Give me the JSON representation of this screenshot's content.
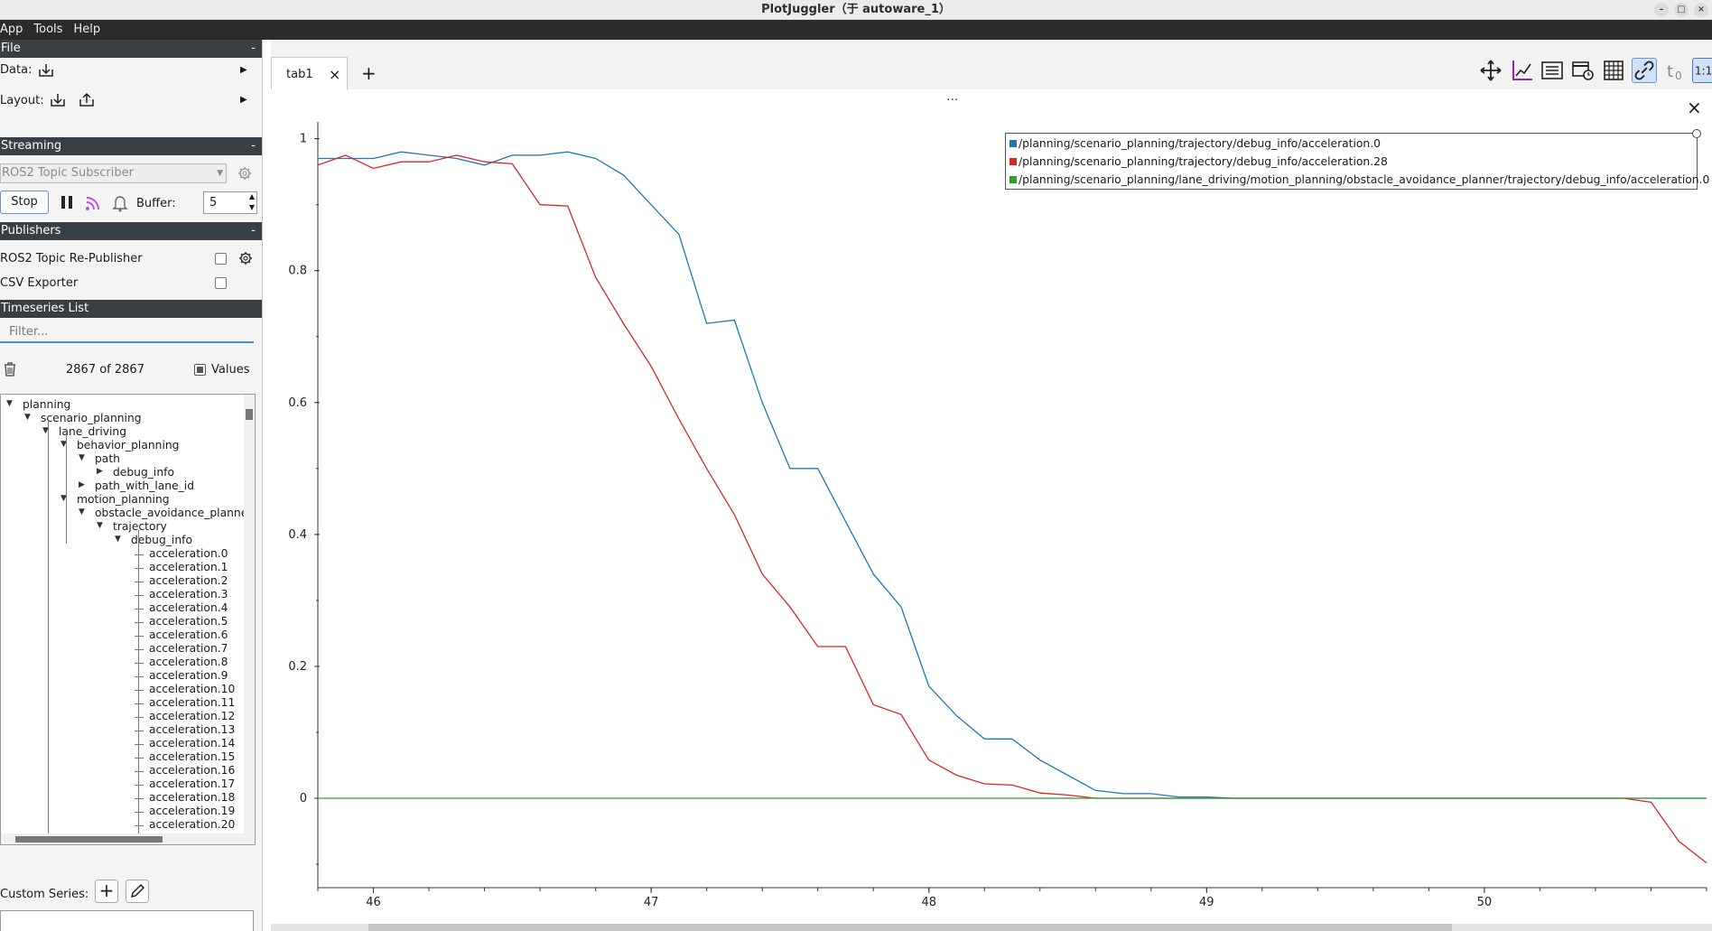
{
  "window": {
    "title": "PlotJuggler（于 autoware_1）",
    "controls": [
      "–",
      "□",
      "×"
    ]
  },
  "menu": [
    "App",
    "Tools",
    "Help"
  ],
  "file_section": {
    "header": "File",
    "collapse": "-",
    "data_label": "Data:",
    "layout_label": "Layout:"
  },
  "streaming": {
    "header": "Streaming",
    "collapse": "-",
    "source": "ROS2 Topic Subscriber",
    "stop_label": "Stop",
    "buffer_label": "Buffer:",
    "buffer_value": "5"
  },
  "publishers": {
    "header": "Publishers",
    "collapse": "-",
    "items": [
      {
        "label": "ROS2 Topic Re-Publisher",
        "checked": false
      },
      {
        "label": "CSV Exporter",
        "checked": false
      }
    ]
  },
  "timeseries": {
    "header": "Timeseries List",
    "filter_placeholder": "Filter...",
    "count": "2867 of 2867",
    "values_label": "Values",
    "tree": [
      {
        "label": "planning",
        "depth": 0,
        "arrow": "down"
      },
      {
        "label": "scenario_planning",
        "depth": 1,
        "arrow": "down"
      },
      {
        "label": "lane_driving",
        "depth": 2,
        "arrow": "down"
      },
      {
        "label": "behavior_planning",
        "depth": 3,
        "arrow": "down"
      },
      {
        "label": "path",
        "depth": 4,
        "arrow": "down"
      },
      {
        "label": "debug_info",
        "depth": 5,
        "arrow": "right"
      },
      {
        "label": "path_with_lane_id",
        "depth": 4,
        "arrow": "right"
      },
      {
        "label": "motion_planning",
        "depth": 3,
        "arrow": "down"
      },
      {
        "label": "obstacle_avoidance_planne",
        "depth": 4,
        "arrow": "down"
      },
      {
        "label": "trajectory",
        "depth": 5,
        "arrow": "down"
      },
      {
        "label": "debug_info",
        "depth": 6,
        "arrow": "down"
      },
      {
        "label": "acceleration.0",
        "depth": 7,
        "arrow": ""
      },
      {
        "label": "acceleration.1",
        "depth": 7,
        "arrow": ""
      },
      {
        "label": "acceleration.2",
        "depth": 7,
        "arrow": ""
      },
      {
        "label": "acceleration.3",
        "depth": 7,
        "arrow": ""
      },
      {
        "label": "acceleration.4",
        "depth": 7,
        "arrow": ""
      },
      {
        "label": "acceleration.5",
        "depth": 7,
        "arrow": ""
      },
      {
        "label": "acceleration.6",
        "depth": 7,
        "arrow": ""
      },
      {
        "label": "acceleration.7",
        "depth": 7,
        "arrow": ""
      },
      {
        "label": "acceleration.8",
        "depth": 7,
        "arrow": ""
      },
      {
        "label": "acceleration.9",
        "depth": 7,
        "arrow": ""
      },
      {
        "label": "acceleration.10",
        "depth": 7,
        "arrow": ""
      },
      {
        "label": "acceleration.11",
        "depth": 7,
        "arrow": ""
      },
      {
        "label": "acceleration.12",
        "depth": 7,
        "arrow": ""
      },
      {
        "label": "acceleration.13",
        "depth": 7,
        "arrow": ""
      },
      {
        "label": "acceleration.14",
        "depth": 7,
        "arrow": ""
      },
      {
        "label": "acceleration.15",
        "depth": 7,
        "arrow": ""
      },
      {
        "label": "acceleration.16",
        "depth": 7,
        "arrow": ""
      },
      {
        "label": "acceleration.17",
        "depth": 7,
        "arrow": ""
      },
      {
        "label": "acceleration.18",
        "depth": 7,
        "arrow": ""
      },
      {
        "label": "acceleration.19",
        "depth": 7,
        "arrow": ""
      },
      {
        "label": "acceleration.20",
        "depth": 7,
        "arrow": ""
      }
    ]
  },
  "custom_series": {
    "label": "Custom Series:",
    "add": "+",
    "edit_icon": "pencil-icon"
  },
  "tabs": [
    {
      "label": "tab1",
      "close": "×"
    }
  ],
  "add_tab": "+",
  "toolbar_icons": [
    "move-icon",
    "fit-axes-icon",
    "list-icon",
    "calendar-clock-icon",
    "grid-icon",
    "link-icon",
    "t0-icon",
    "ratio-icon"
  ],
  "plot": {
    "dots": "...",
    "close": "×"
  },
  "chart_data": {
    "type": "line",
    "xlim": [
      45.8,
      50.8
    ],
    "ylim": [
      -0.13,
      1.02
    ],
    "x_ticks": [
      46,
      47,
      48,
      49,
      50
    ],
    "x_tick_labels": [
      "46",
      "47",
      "48",
      "49",
      "50"
    ],
    "y_ticks": [
      0,
      0.2,
      0.4,
      0.6,
      0.8,
      1
    ],
    "y_tick_labels": [
      "0",
      "0.2",
      "0.4",
      "0.6",
      "0.8",
      "1"
    ],
    "legend_position": "top-right",
    "series": [
      {
        "name": "/planning/scenario_planning/trajectory/debug_info/acceleration.0",
        "color": "#1f77b4",
        "x": [
          45.8,
          46.0,
          46.1,
          46.2,
          46.3,
          46.4,
          46.5,
          46.6,
          46.7,
          46.8,
          46.9,
          47.0,
          47.1,
          47.2,
          47.3,
          47.4,
          47.5,
          47.6,
          47.7,
          47.8,
          47.9,
          48.0,
          48.1,
          48.2,
          48.3,
          48.4,
          48.5,
          48.6,
          48.7,
          48.8,
          48.9,
          49.0,
          49.1,
          50.8
        ],
        "y": [
          0.97,
          0.97,
          0.98,
          0.975,
          0.97,
          0.96,
          0.975,
          0.975,
          0.98,
          0.97,
          0.945,
          0.9,
          0.855,
          0.72,
          0.725,
          0.6,
          0.5,
          0.5,
          0.42,
          0.34,
          0.29,
          0.17,
          0.125,
          0.09,
          0.09,
          0.058,
          0.035,
          0.012,
          0.007,
          0.007,
          0.002,
          0.002,
          0.0,
          0.0
        ]
      },
      {
        "name": "/planning/scenario_planning/trajectory/debug_info/acceleration.28",
        "color": "#d62728",
        "x": [
          45.8,
          45.9,
          46.0,
          46.1,
          46.2,
          46.3,
          46.4,
          46.5,
          46.6,
          46.7,
          46.8,
          46.9,
          47.0,
          47.1,
          47.2,
          47.3,
          47.4,
          47.5,
          47.6,
          47.7,
          47.8,
          47.9,
          48.0,
          48.1,
          48.2,
          48.3,
          48.4,
          48.5,
          48.6,
          48.7,
          48.8,
          49.0,
          50.5,
          50.6,
          50.7,
          50.8
        ],
        "y": [
          0.96,
          0.975,
          0.955,
          0.965,
          0.965,
          0.975,
          0.965,
          0.962,
          0.9,
          0.898,
          0.79,
          0.72,
          0.655,
          0.575,
          0.5,
          0.43,
          0.34,
          0.29,
          0.23,
          0.23,
          0.142,
          0.127,
          0.058,
          0.035,
          0.022,
          0.02,
          0.008,
          0.005,
          0.0,
          0.0,
          0.0,
          0.0,
          0.0,
          -0.006,
          -0.065,
          -0.098
        ]
      },
      {
        "name": "/planning/scenario_planning/lane_driving/motion_planning/obstacle_avoidance_planner/trajectory/debug_info/acceleration.0",
        "color": "#2ca02c",
        "x": [
          45.8,
          50.8
        ],
        "y": [
          0.0,
          0.0
        ]
      }
    ]
  }
}
